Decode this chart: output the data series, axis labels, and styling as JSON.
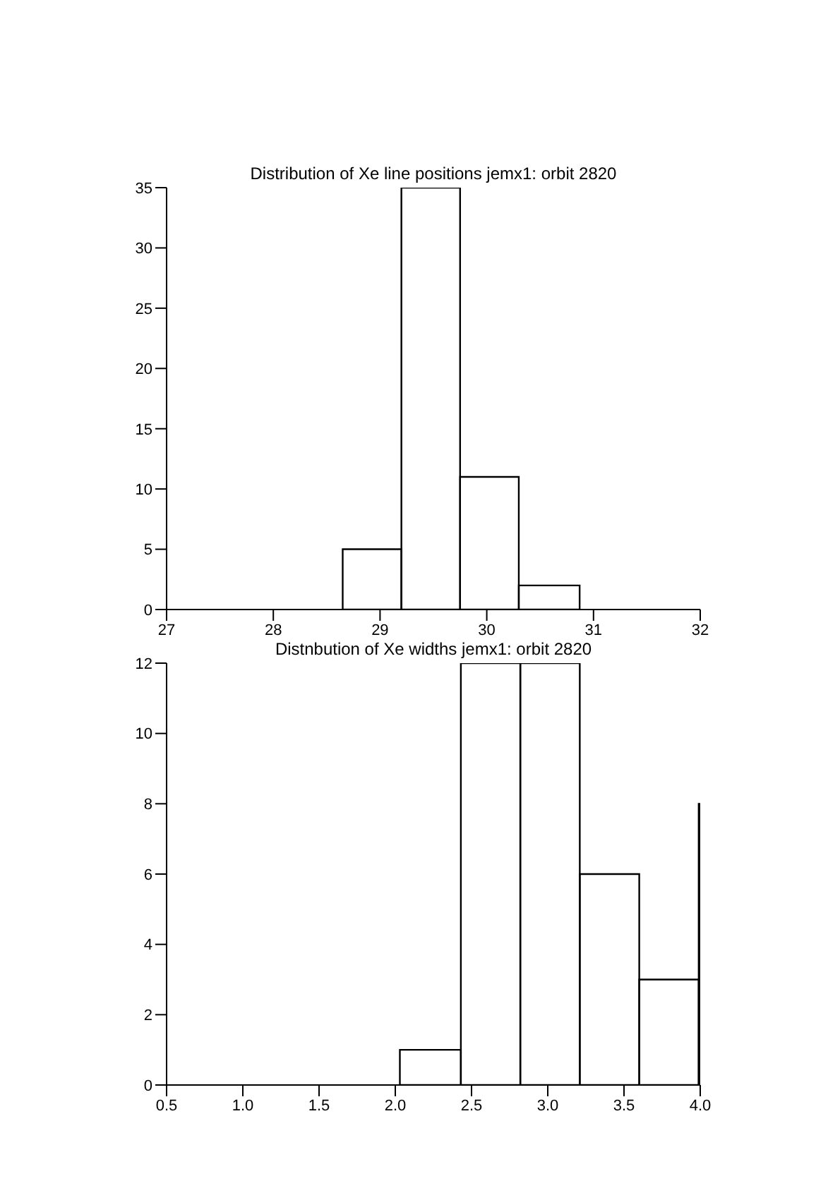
{
  "chart_data": [
    {
      "type": "histogram",
      "title": "Distribution of Xe line positions jemx1: orbit 2820",
      "bins": [
        28.65,
        29.2,
        29.75,
        30.3,
        30.87
      ],
      "values": [
        5,
        35,
        11,
        2
      ],
      "color": "#000000",
      "xlim": [
        27,
        32
      ],
      "xticks": [
        27,
        28,
        29,
        30,
        31,
        32
      ],
      "ylim": [
        0,
        35
      ],
      "yticks": [
        0,
        5,
        10,
        15,
        20,
        25,
        30,
        35
      ],
      "grid": false
    },
    {
      "type": "histogram",
      "title": "Distnbution of Xe widths jemx1: orbit 2820",
      "bins": [
        2.03,
        2.43,
        2.82,
        3.21,
        3.6,
        3.99,
        4.0
      ],
      "values": [
        1,
        12,
        12,
        6,
        3,
        8
      ],
      "color": "#000000",
      "xlim": [
        0.5,
        4.0
      ],
      "xticks": [
        0.5,
        {
          "value": 1,
          "label": "1.0"
        },
        1.5,
        {
          "value": 2,
          "label": "2.0"
        },
        2.5,
        {
          "value": 3,
          "label": "3.0"
        },
        3.5,
        {
          "value": 4,
          "label": "4.0"
        }
      ],
      "ylim": [
        0,
        12
      ],
      "yticks": [
        0,
        2,
        4,
        6,
        8,
        10,
        12
      ],
      "grid": false
    }
  ]
}
